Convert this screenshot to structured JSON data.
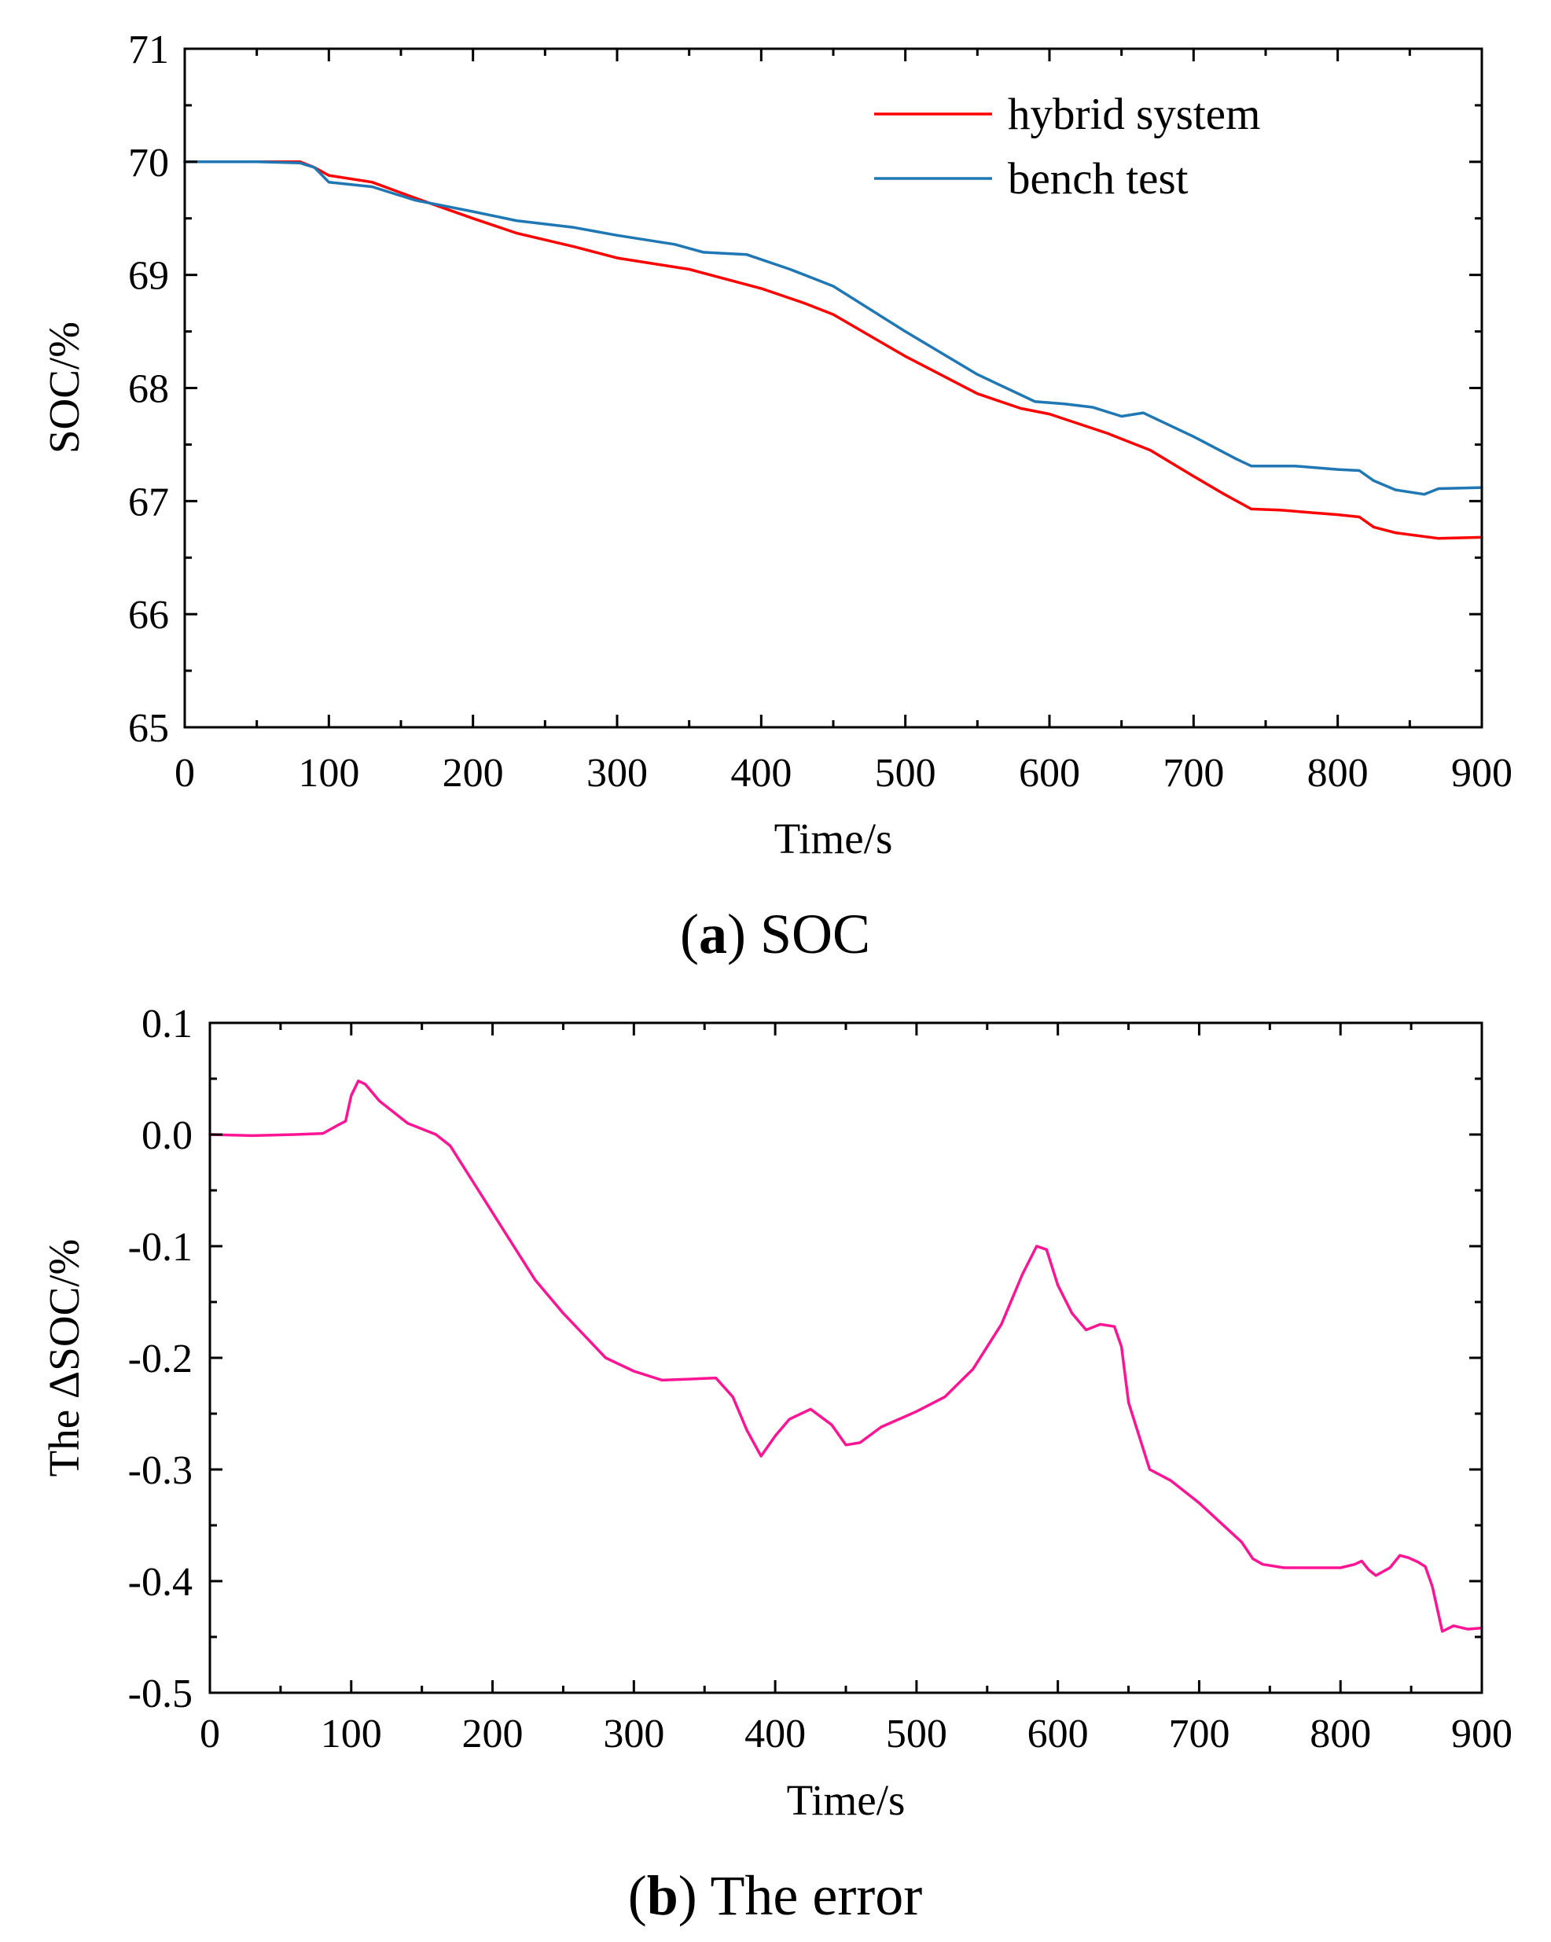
{
  "chart_data": [
    {
      "type": "line",
      "caption": {
        "letter": "a",
        "text": "SOC"
      },
      "xlabel": "Time/s",
      "ylabel": "SOC/%",
      "xlim": [
        0,
        900
      ],
      "ylim": [
        65,
        71
      ],
      "xticks": [
        0,
        100,
        200,
        300,
        400,
        500,
        600,
        700,
        800,
        900
      ],
      "yticks": [
        65,
        66,
        67,
        68,
        69,
        70,
        71
      ],
      "grid": false,
      "legend": "top-right",
      "series": [
        {
          "name": "hybrid system",
          "color": "#ff0000",
          "x": [
            0,
            50,
            80,
            90,
            100,
            130,
            160,
            200,
            230,
            270,
            300,
            350,
            400,
            430,
            450,
            500,
            550,
            580,
            600,
            640,
            670,
            700,
            720,
            740,
            760,
            780,
            800,
            815,
            825,
            840,
            870,
            900
          ],
          "y": [
            70.0,
            70.0,
            70.0,
            69.95,
            69.88,
            69.82,
            69.68,
            69.5,
            69.37,
            69.25,
            69.15,
            69.05,
            68.88,
            68.75,
            68.65,
            68.28,
            67.95,
            67.82,
            67.77,
            67.6,
            67.45,
            67.22,
            67.07,
            66.93,
            66.92,
            66.9,
            66.88,
            66.86,
            66.77,
            66.72,
            66.67,
            66.68
          ]
        },
        {
          "name": "bench test",
          "color": "#1f77b4",
          "x": [
            0,
            50,
            80,
            90,
            100,
            130,
            160,
            200,
            230,
            270,
            300,
            340,
            360,
            390,
            420,
            450,
            500,
            550,
            590,
            610,
            630,
            650,
            665,
            700,
            730,
            740,
            770,
            800,
            815,
            825,
            840,
            860,
            870,
            900
          ],
          "y": [
            70.0,
            70.0,
            69.99,
            69.95,
            69.82,
            69.78,
            69.66,
            69.56,
            69.48,
            69.42,
            69.35,
            69.27,
            69.2,
            69.18,
            69.05,
            68.9,
            68.5,
            68.12,
            67.88,
            67.86,
            67.83,
            67.75,
            67.78,
            67.57,
            67.37,
            67.31,
            67.31,
            67.28,
            67.27,
            67.18,
            67.1,
            67.06,
            67.11,
            67.12
          ]
        }
      ]
    },
    {
      "type": "line",
      "caption": {
        "letter": "b",
        "text": "The error"
      },
      "xlabel": "Time/s",
      "ylabel": "The ΔSOC/%",
      "xlim": [
        0,
        900
      ],
      "ylim": [
        -0.5,
        0.1
      ],
      "xticks": [
        0,
        100,
        200,
        300,
        400,
        500,
        600,
        700,
        800,
        900
      ],
      "yticks": [
        -0.5,
        -0.4,
        -0.3,
        -0.2,
        -0.1,
        0.0,
        0.1
      ],
      "ytick_labels": [
        "-0.5",
        "-0.4",
        "-0.3",
        "-0.2",
        "-0.1",
        "0.0",
        "0.1"
      ],
      "grid": false,
      "series": [
        {
          "color": "#ff1493",
          "x": [
            0,
            30,
            60,
            80,
            90,
            96,
            100,
            105,
            110,
            120,
            140,
            160,
            170,
            190,
            210,
            230,
            250,
            265,
            280,
            300,
            320,
            340,
            358,
            370,
            380,
            390,
            400,
            410,
            425,
            440,
            450,
            460,
            475,
            500,
            520,
            540,
            560,
            575,
            585,
            592,
            600,
            610,
            620,
            630,
            640,
            645,
            650,
            665,
            680,
            700,
            730,
            738,
            745,
            760,
            790,
            800,
            810,
            815,
            820,
            825,
            835,
            842,
            848,
            855,
            860,
            865,
            872,
            880,
            890,
            900
          ],
          "y": [
            0.0,
            -0.001,
            0.0,
            0.001,
            0.008,
            0.012,
            0.035,
            0.048,
            0.045,
            0.03,
            0.01,
            0.0,
            -0.01,
            -0.05,
            -0.09,
            -0.13,
            -0.16,
            -0.18,
            -0.2,
            -0.212,
            -0.22,
            -0.219,
            -0.218,
            -0.235,
            -0.265,
            -0.288,
            -0.27,
            -0.255,
            -0.246,
            -0.26,
            -0.278,
            -0.276,
            -0.262,
            -0.248,
            -0.235,
            -0.21,
            -0.17,
            -0.125,
            -0.1,
            -0.103,
            -0.135,
            -0.16,
            -0.175,
            -0.17,
            -0.172,
            -0.19,
            -0.24,
            -0.3,
            -0.31,
            -0.33,
            -0.365,
            -0.38,
            -0.385,
            -0.388,
            -0.388,
            -0.388,
            -0.385,
            -0.382,
            -0.39,
            -0.395,
            -0.388,
            -0.377,
            -0.379,
            -0.383,
            -0.387,
            -0.405,
            -0.445,
            -0.44,
            -0.443,
            -0.442
          ]
        }
      ]
    }
  ]
}
